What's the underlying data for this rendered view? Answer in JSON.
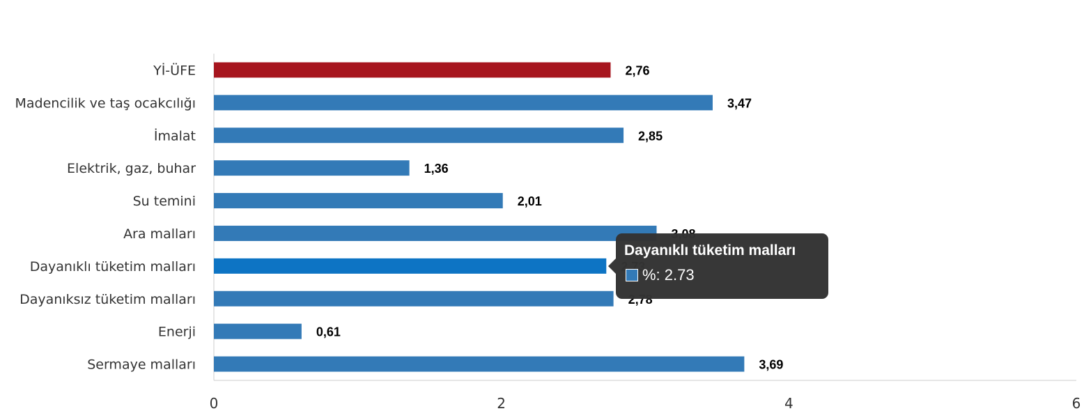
{
  "chart_data": {
    "type": "bar",
    "orientation": "horizontal",
    "categories": [
      "Yİ-ÜFE",
      "Madencilik ve taş ocakcılığı",
      "İmalat",
      "Elektrik, gaz, buhar",
      "Su temini",
      "Ara malları",
      "Dayanıklı tüketim malları",
      "Dayanıksız tüketim malları",
      "Enerji",
      "Sermaye malları"
    ],
    "values": [
      2.76,
      3.47,
      2.85,
      1.36,
      2.01,
      3.08,
      2.73,
      2.78,
      0.61,
      3.69
    ],
    "value_labels": [
      "2,76",
      "3,47",
      "2,85",
      "1,36",
      "2,01",
      "3,08",
      "2,73",
      "2,78",
      "0,61",
      "3,69"
    ],
    "xlim": [
      0,
      6
    ],
    "xticks": [
      0,
      2,
      4,
      6
    ],
    "xtick_labels": [
      "0",
      "2",
      "4",
      "6"
    ],
    "bar_color": "#337ab7",
    "highlight_color": "#a7151e",
    "hover_color": "#0d74c4",
    "highlight_index": 0,
    "hover_index": 6,
    "grid": false,
    "legend": "none"
  },
  "tooltip": {
    "title": "Dayanıklı tüketim malları",
    "text": "%: 2.73"
  }
}
